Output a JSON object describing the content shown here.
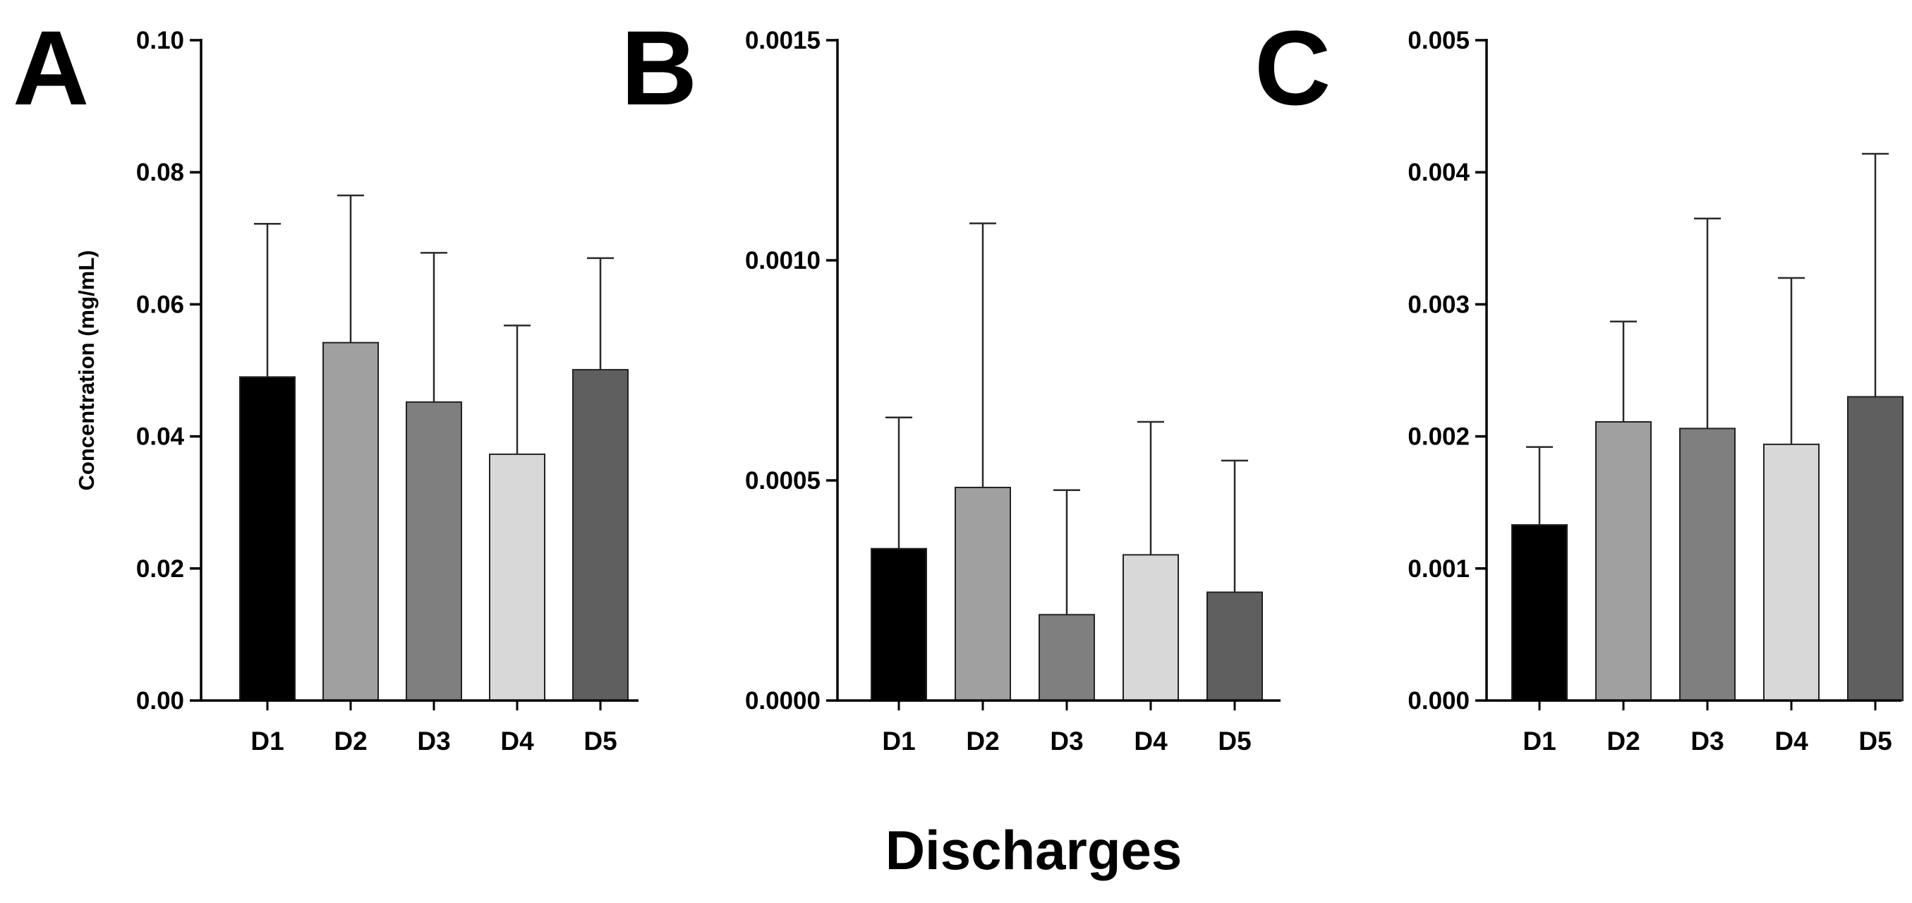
{
  "figure": {
    "xlabel": "Discharges"
  },
  "chart_data": [
    {
      "type": "bar",
      "panel_label": "A",
      "ylabel": "Concentration (mg/mL)",
      "categories": [
        "D1",
        "D2",
        "D3",
        "D4",
        "D5"
      ],
      "values": [
        0.049,
        0.0542,
        0.0452,
        0.0373,
        0.0501
      ],
      "error_upper": [
        0.0722,
        0.0765,
        0.0678,
        0.0568,
        0.067
      ],
      "ylim": [
        0,
        0.1
      ],
      "yticks": [
        0,
        0.02,
        0.04,
        0.06,
        0.08,
        0.1
      ],
      "ytick_labels": [
        "0.00",
        "0.02",
        "0.04",
        "0.06",
        "0.08",
        "0.10"
      ],
      "bar_colors": [
        "#000000",
        "#a0a0a0",
        "#7f7f7f",
        "#d8d8d8",
        "#5f5f5f"
      ]
    },
    {
      "type": "bar",
      "panel_label": "B",
      "ylabel": "",
      "categories": [
        "D1",
        "D2",
        "D3",
        "D4",
        "D5"
      ],
      "values": [
        0.000345,
        0.000484,
        0.000195,
        0.000331,
        0.000246
      ],
      "error_upper": [
        0.000643,
        0.001084,
        0.000478,
        0.000633,
        0.000545
      ],
      "ylim": [
        0,
        0.0015
      ],
      "yticks": [
        0,
        0.0005,
        0.001,
        0.0015
      ],
      "ytick_labels": [
        "0.0000",
        "0.0005",
        "0.0010",
        "0.0015"
      ],
      "bar_colors": [
        "#000000",
        "#a0a0a0",
        "#7f7f7f",
        "#d8d8d8",
        "#5f5f5f"
      ]
    },
    {
      "type": "bar",
      "panel_label": "C",
      "ylabel": "",
      "categories": [
        "D1",
        "D2",
        "D3",
        "D4",
        "D5"
      ],
      "values": [
        0.00133,
        0.00211,
        0.00206,
        0.00194,
        0.0023
      ],
      "error_upper": [
        0.00192,
        0.00287,
        0.00365,
        0.0032,
        0.00414
      ],
      "ylim": [
        0,
        0.005
      ],
      "yticks": [
        0,
        0.001,
        0.002,
        0.003,
        0.004,
        0.005
      ],
      "ytick_labels": [
        "0.000",
        "0.001",
        "0.002",
        "0.003",
        "0.004",
        "0.005"
      ],
      "bar_colors": [
        "#000000",
        "#a0a0a0",
        "#7f7f7f",
        "#d8d8d8",
        "#5f5f5f"
      ]
    }
  ]
}
